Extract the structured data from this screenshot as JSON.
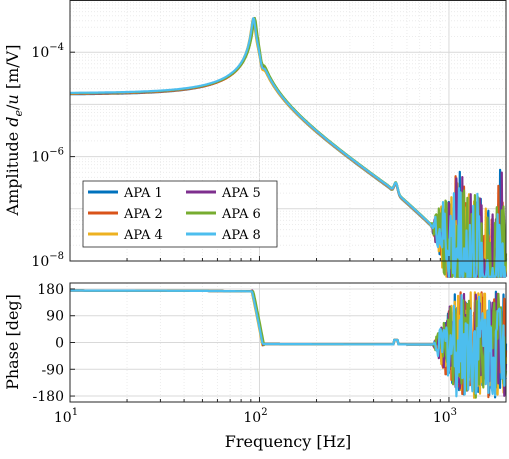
{
  "chart_data": [
    {
      "type": "line",
      "panel": "amplitude",
      "ylabel_prefix": "Amplitude ",
      "ylabel_math": "d",
      "ylabel_sub": "e",
      "ylabel_mid": "/",
      "ylabel_math2": "u",
      "ylabel_units": " [m/V]",
      "xscale": "log",
      "yscale": "log",
      "xlim": [
        10,
        2000
      ],
      "ylim": [
        1e-08,
        0.001
      ],
      "grid": true,
      "legend_position": "lower-left",
      "yticks": [
        {
          "value": 0.0001,
          "base": "10",
          "exp": "−4"
        },
        {
          "value": 1e-06,
          "base": "10",
          "exp": "−6"
        },
        {
          "value": 1e-08,
          "base": "10",
          "exp": "−8"
        }
      ],
      "series": [
        {
          "name": "APA 1",
          "color": "#0072BD",
          "resonance_hz": 93.0,
          "peak": 0.00041
        },
        {
          "name": "APA 2",
          "color": "#D95319",
          "resonance_hz": 94.0,
          "peak": 0.00044
        },
        {
          "name": "APA 4",
          "color": "#EDB120",
          "resonance_hz": 92.5,
          "peak": 0.0004
        },
        {
          "name": "APA 5",
          "color": "#7E2F8E",
          "resonance_hz": 93.5,
          "peak": 0.00042
        },
        {
          "name": "APA 6",
          "color": "#77AC30",
          "resonance_hz": 94.5,
          "peak": 0.00036
        },
        {
          "name": "APA 8",
          "color": "#4DBEEE",
          "resonance_hz": 93.0,
          "peak": 0.00055
        }
      ],
      "low_frequency_level": 1.6e-05
    },
    {
      "type": "line",
      "panel": "phase",
      "ylabel": "Phase [deg]",
      "xlabel": "Frequency [Hz]",
      "xscale": "log",
      "xlim": [
        10,
        2000
      ],
      "ylim": [
        -200,
        200
      ],
      "grid": true,
      "yticks": [
        180,
        90,
        0,
        -90,
        -180
      ],
      "ytick_labels": [
        "180",
        "90",
        "0",
        "-90",
        "-180"
      ],
      "xticks": [
        {
          "value": 10,
          "base": "10",
          "exp": "1"
        },
        {
          "value": 100,
          "base": "10",
          "exp": "2"
        },
        {
          "value": 1000,
          "base": "10",
          "exp": "3"
        }
      ],
      "low_frequency_phase": 175,
      "high_frequency_phase": -5
    }
  ]
}
